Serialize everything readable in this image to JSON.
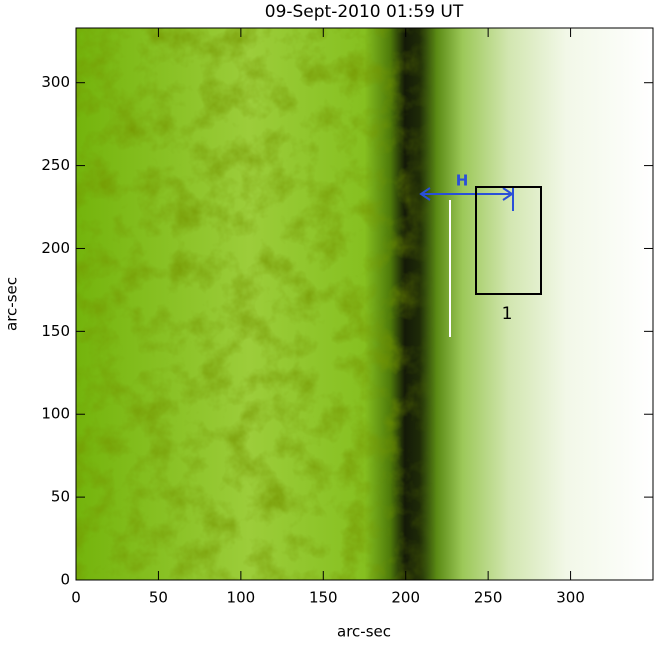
{
  "chart_data": {
    "type": "image",
    "title": "09-Sept-2010 01:59 UT",
    "x_label": "arc-sec",
    "y_label": "arc-sec",
    "xlim": [
      0,
      350
    ],
    "ylim": [
      0,
      333
    ],
    "xticks": [
      0,
      50,
      100,
      150,
      200,
      250,
      300
    ],
    "yticks": [
      0,
      50,
      100,
      150,
      200,
      250,
      300
    ],
    "annotations": [
      "H",
      "1"
    ]
  }
}
